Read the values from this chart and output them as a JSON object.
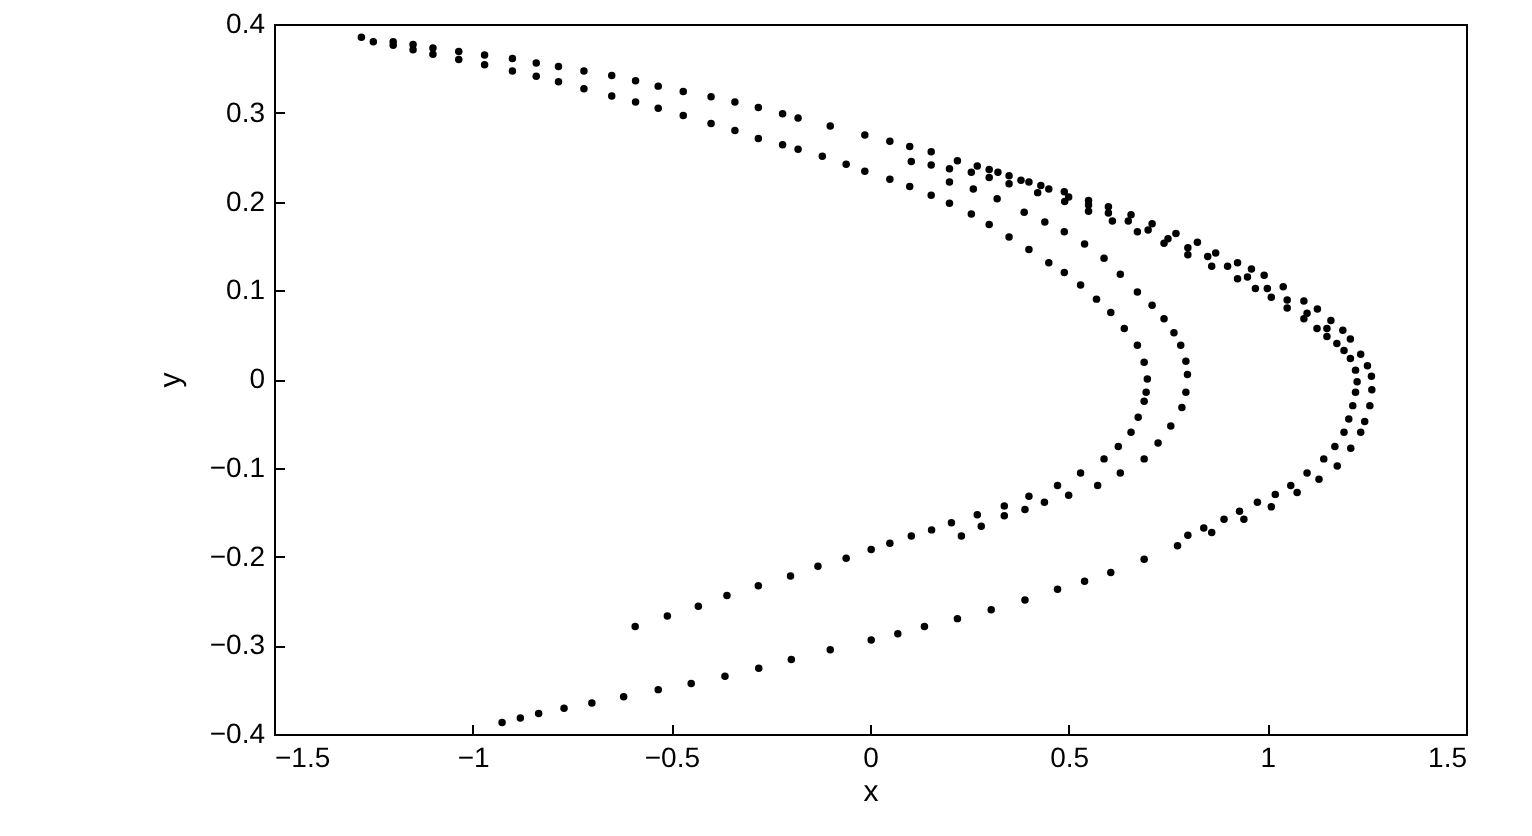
{
  "chart_data": {
    "type": "scatter",
    "xlabel": "x",
    "ylabel": "y",
    "marker": "circle",
    "xlim": [
      -1.5,
      1.5
    ],
    "xticks": [
      -1.5,
      -1,
      -0.5,
      0,
      0.5,
      1,
      1.5
    ],
    "ylim": [
      -0.4,
      0.4
    ],
    "yticks": [
      -0.4,
      -0.3,
      -0.2,
      -0.1,
      0,
      0.1,
      0.2,
      0.3,
      0.4
    ],
    "series": [
      {
        "color": "#000000",
        "x": [
          -1.28,
          -1.2,
          -1.15,
          -1.1,
          -1.035,
          -0.97,
          -0.9,
          -0.84,
          -0.784,
          -0.72,
          -0.65,
          -0.59,
          -0.533,
          -0.47,
          -0.4,
          -0.34,
          -0.281,
          -0.22,
          -0.181,
          -0.1,
          -0.013,
          0.05,
          0.1,
          0.154,
          0.22,
          0.27,
          0.322,
          0.38,
          0.43,
          0.489,
          0.55,
          0.6,
          0.657,
          0.71,
          0.77,
          0.824,
          0.87,
          0.925,
          0.96,
          0.992,
          1.04,
          1.092,
          1.126,
          1.16,
          1.19,
          1.209,
          1.235,
          1.252,
          1.262,
          1.263,
          1.258,
          1.245,
          1.235,
          1.21,
          1.176,
          1.13,
          1.075,
          1.01,
          0.941,
          0.86,
          0.774,
          0.69,
          0.606,
          0.54,
          0.472,
          0.39,
          0.305,
          0.22,
          0.137,
          0.07,
          0.003,
          -0.1,
          -0.198,
          -0.28,
          -0.365,
          -0.45,
          -0.533,
          -0.62,
          -0.7,
          -0.77,
          -0.834,
          -0.88,
          -0.926
        ],
        "values": [
          0.385,
          0.38,
          0.377,
          0.373,
          0.369,
          0.365,
          0.361,
          0.356,
          0.352,
          0.347,
          0.342,
          0.336,
          0.33,
          0.324,
          0.318,
          0.312,
          0.306,
          0.299,
          0.294,
          0.285,
          0.275,
          0.268,
          0.262,
          0.256,
          0.246,
          0.24,
          0.233,
          0.224,
          0.218,
          0.211,
          0.201,
          0.194,
          0.185,
          0.175,
          0.164,
          0.154,
          0.142,
          0.131,
          0.124,
          0.117,
          0.104,
          0.088,
          0.079,
          0.066,
          0.055,
          0.045,
          0.028,
          0.015,
          0.003,
          -0.012,
          -0.03,
          -0.048,
          -0.06,
          -0.078,
          -0.098,
          -0.113,
          -0.128,
          -0.144,
          -0.158,
          -0.173,
          -0.188,
          -0.203,
          -0.218,
          -0.228,
          -0.237,
          -0.249,
          -0.26,
          -0.27,
          -0.279,
          -0.287,
          -0.294,
          -0.305,
          -0.316,
          -0.326,
          -0.335,
          -0.343,
          -0.35,
          -0.358,
          -0.365,
          -0.371,
          -0.377,
          -0.382,
          -0.387
        ]
      },
      {
        "color": "#000000",
        "x": [
          0.104,
          0.154,
          0.2,
          0.255,
          0.3,
          0.35,
          0.422,
          0.49,
          0.55,
          0.61,
          0.673,
          0.74,
          0.8,
          0.86,
          0.925,
          0.97,
          1.01,
          1.05,
          1.092,
          1.125,
          1.15,
          1.175,
          1.193,
          1.209,
          1.222,
          1.226,
          1.222,
          1.215,
          1.205,
          1.193,
          1.17,
          1.142,
          1.1,
          1.059,
          1.02,
          0.975,
          0.93,
          0.891,
          0.84,
          0.8
        ],
        "values": [
          0.245,
          0.241,
          0.237,
          0.233,
          0.227,
          0.22,
          0.21,
          0.2,
          0.189,
          0.178,
          0.166,
          0.153,
          0.14,
          0.127,
          0.113,
          0.102,
          0.092,
          0.08,
          0.068,
          0.057,
          0.048,
          0.04,
          0.032,
          0.023,
          0.01,
          -0.003,
          -0.015,
          -0.03,
          -0.045,
          -0.06,
          -0.076,
          -0.09,
          -0.106,
          -0.12,
          -0.13,
          -0.139,
          -0.149,
          -0.158,
          -0.168,
          -0.176
        ]
      },
      {
        "color": "#000000",
        "x": [
          0.3,
          0.35,
          0.4,
          0.45,
          0.5,
          0.55,
          0.6,
          0.65,
          0.7,
          0.75,
          0.8,
          0.85,
          0.9,
          0.95,
          1.0,
          1.05,
          1.1,
          1.15
        ],
        "values": [
          0.236,
          0.229,
          0.222,
          0.214,
          0.205,
          0.196,
          0.187,
          0.178,
          0.168,
          0.158,
          0.148,
          0.138,
          0.127,
          0.115,
          0.102,
          0.089,
          0.074,
          0.057
        ]
      },
      {
        "color": "#000000",
        "x": [
          -1.25,
          -1.2,
          -1.15,
          -1.1,
          -1.035,
          -0.97,
          -0.9,
          -0.84,
          -0.784,
          -0.72,
          -0.65,
          -0.59,
          -0.533,
          -0.47,
          -0.4,
          -0.34,
          -0.281,
          -0.22,
          -0.181,
          -0.12,
          -0.06,
          -0.013,
          0.05,
          0.1,
          0.154,
          0.2,
          0.255,
          0.3,
          0.35,
          0.4,
          0.45,
          0.489,
          0.53,
          0.57,
          0.606,
          0.64,
          0.673,
          0.69,
          0.698,
          0.695,
          0.69,
          0.675,
          0.657,
          0.625,
          0.589,
          0.53,
          0.472,
          0.4,
          0.338,
          0.27,
          0.205,
          0.155,
          0.104,
          0.05,
          0.003,
          -0.06,
          -0.131,
          -0.2,
          -0.281,
          -0.36,
          -0.432,
          -0.51,
          -0.591
        ],
        "values": [
          0.38,
          0.376,
          0.371,
          0.366,
          0.36,
          0.354,
          0.347,
          0.341,
          0.335,
          0.327,
          0.319,
          0.312,
          0.305,
          0.297,
          0.288,
          0.28,
          0.271,
          0.264,
          0.259,
          0.251,
          0.242,
          0.234,
          0.225,
          0.217,
          0.207,
          0.198,
          0.186,
          0.174,
          0.16,
          0.146,
          0.131,
          0.12,
          0.106,
          0.09,
          0.075,
          0.057,
          0.038,
          0.019,
          0,
          -0.015,
          -0.025,
          -0.043,
          -0.06,
          -0.076,
          -0.09,
          -0.106,
          -0.12,
          -0.132,
          -0.143,
          -0.153,
          -0.162,
          -0.17,
          -0.177,
          -0.185,
          -0.192,
          -0.202,
          -0.211,
          -0.222,
          -0.233,
          -0.244,
          -0.256,
          -0.267,
          -0.279
        ]
      },
      {
        "color": "#000000",
        "x": [
          0.2,
          0.26,
          0.32,
          0.388,
          0.44,
          0.489,
          0.54,
          0.589,
          0.63,
          0.673,
          0.71,
          0.74,
          0.765,
          0.782,
          0.795,
          0.799,
          0.795,
          0.785,
          0.757,
          0.725,
          0.69,
          0.63,
          0.573,
          0.5,
          0.439,
          0.39,
          0.338,
          0.28,
          0.23
        ],
        "values": [
          0.222,
          0.214,
          0.203,
          0.188,
          0.177,
          0.166,
          0.152,
          0.136,
          0.118,
          0.098,
          0.083,
          0.068,
          0.052,
          0.038,
          0.02,
          0.005,
          -0.015,
          -0.032,
          -0.053,
          -0.072,
          -0.09,
          -0.106,
          -0.12,
          -0.131,
          -0.139,
          -0.147,
          -0.154,
          -0.166,
          -0.177
        ]
      }
    ]
  }
}
